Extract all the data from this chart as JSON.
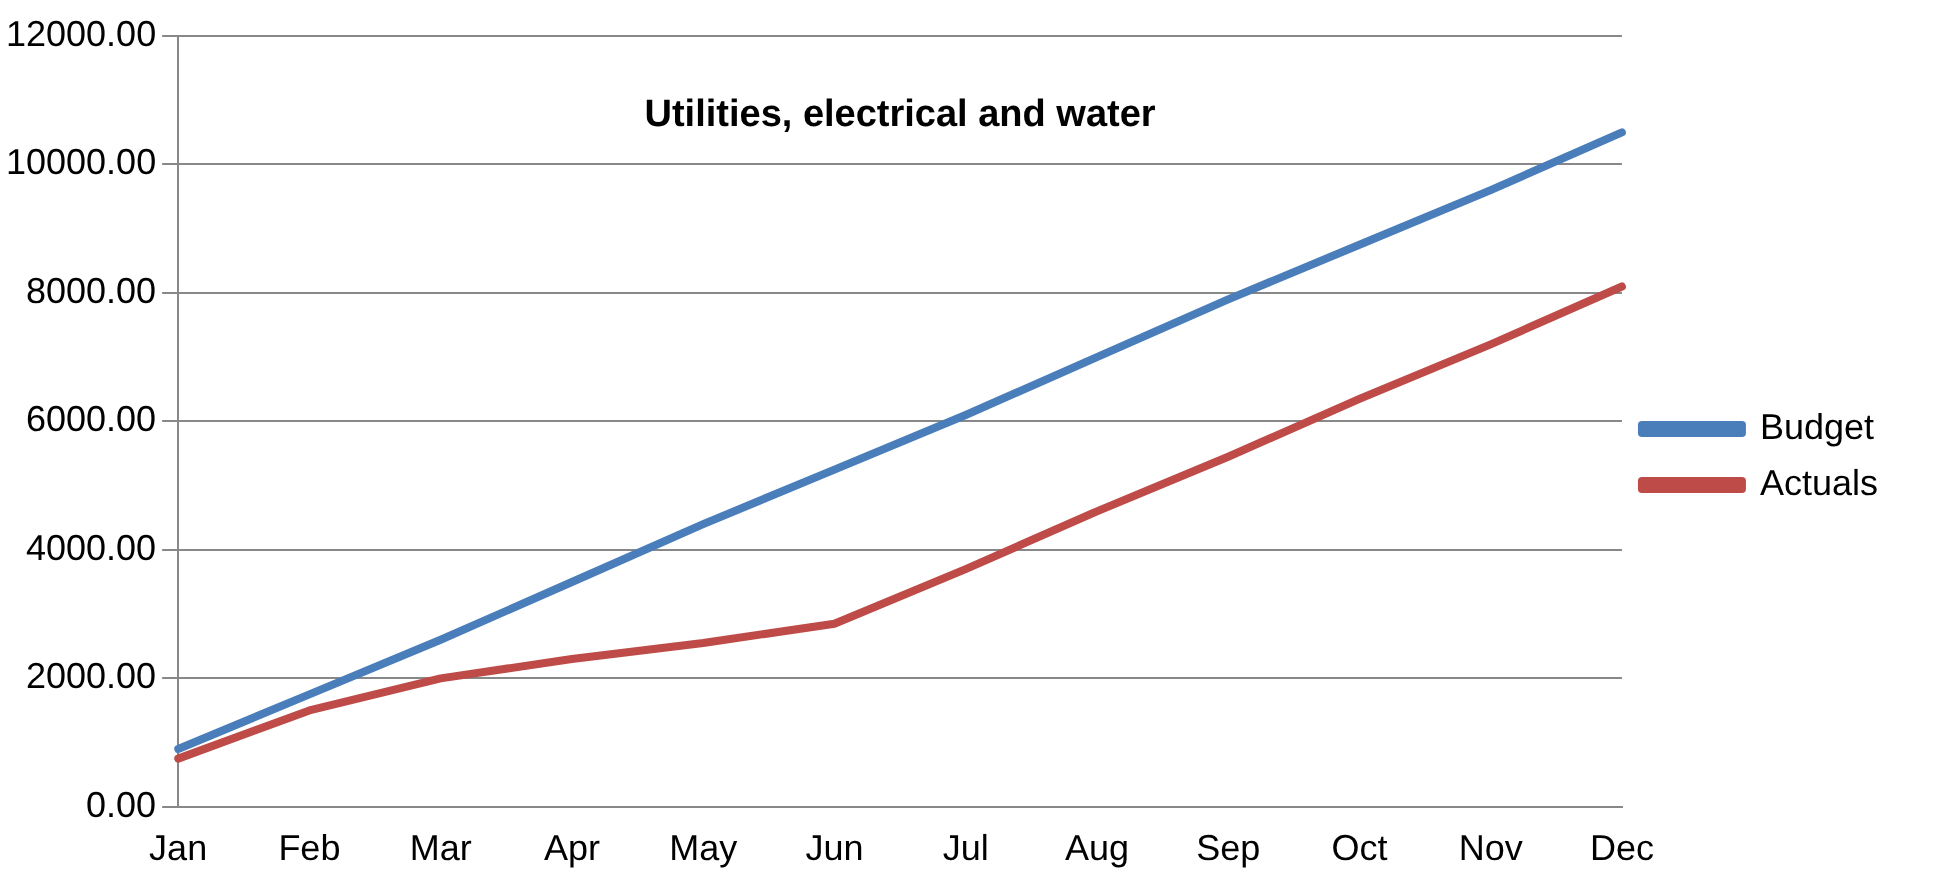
{
  "chart_data": {
    "type": "line",
    "title": "Utilities, electrical and water",
    "categories": [
      "Jan",
      "Feb",
      "Mar",
      "Apr",
      "May",
      "Jun",
      "Jul",
      "Aug",
      "Sep",
      "Oct",
      "Nov",
      "Dec"
    ],
    "series": [
      {
        "name": "Budget",
        "color": "#4a7ebb",
        "values": [
          900,
          1750,
          2600,
          3500,
          4400,
          5250,
          6100,
          7000,
          7900,
          8750,
          9600,
          10500
        ]
      },
      {
        "name": "Actuals",
        "color": "#be4b48",
        "values": [
          750,
          1500,
          2000,
          2300,
          2550,
          2850,
          3700,
          4600,
          5450,
          6350,
          7200,
          8100
        ]
      }
    ],
    "ylim": [
      0,
      12000
    ],
    "yticks": [
      {
        "value": 0,
        "label": "0.00"
      },
      {
        "value": 2000,
        "label": "2000.00"
      },
      {
        "value": 4000,
        "label": "4000.00"
      },
      {
        "value": 6000,
        "label": "6000.00"
      },
      {
        "value": 8000,
        "label": "8000.00"
      },
      {
        "value": 10000,
        "label": "10000.00"
      },
      {
        "value": 12000,
        "label": "12000.00"
      }
    ],
    "grid": "y",
    "legend": "right",
    "marker": "none",
    "line_style": "solid"
  }
}
